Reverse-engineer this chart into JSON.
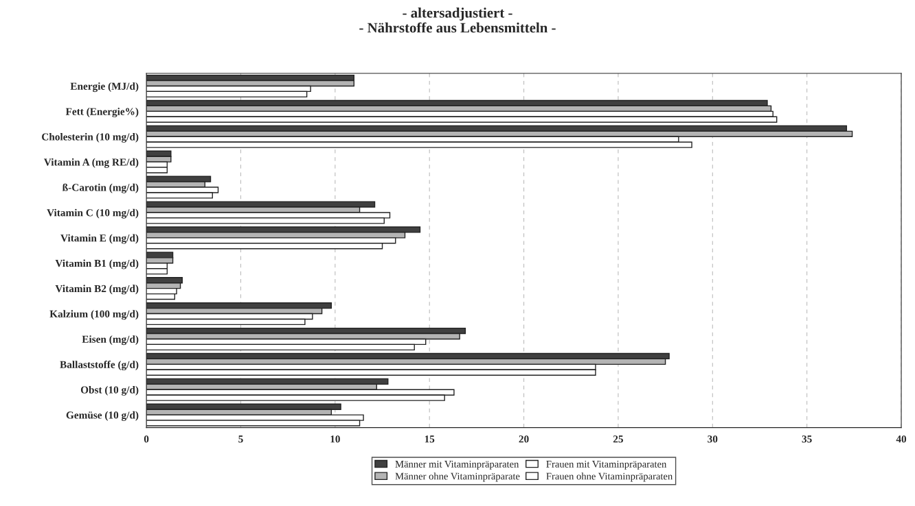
{
  "chart_data": {
    "type": "bar",
    "orientation": "horizontal",
    "title": "- altersadjustiert -\n- Nährstoffe aus Lebensmitteln -",
    "categories": [
      "Energie (MJ/d)",
      "Fett (Energie%)",
      "Cholesterin (10 mg/d)",
      "Vitamin A (mg RE/d)",
      "ß-Carotin (mg/d)",
      "Vitamin C (10 mg/d)",
      "Vitamin E (mg/d)",
      "Vitamin B1 (mg/d)",
      "Vitamin B2 (mg/d)",
      "Kalzium (100 mg/d)",
      "Eisen (mg/d)",
      "Ballaststoffe (g/d)",
      "Obst (10 g/d)",
      "Gemüse (10 g/d)"
    ],
    "series": [
      {
        "name": "Männer mit Vitaminpräparaten",
        "color": "#404040",
        "values": [
          11.0,
          32.9,
          37.1,
          1.3,
          3.4,
          12.1,
          14.5,
          1.4,
          1.9,
          9.8,
          16.9,
          27.7,
          12.8,
          10.3
        ]
      },
      {
        "name": "Männer ohne Vitaminpräparate",
        "color": "#b4b4b4",
        "values": [
          11.0,
          33.1,
          37.4,
          1.3,
          3.1,
          11.3,
          13.7,
          1.4,
          1.8,
          9.3,
          16.6,
          27.5,
          12.2,
          9.8
        ]
      },
      {
        "name": "Frauen mit Vitaminpräparaten",
        "color": "#ffffff",
        "values": [
          8.7,
          33.2,
          28.2,
          1.1,
          3.8,
          12.9,
          13.2,
          1.1,
          1.6,
          8.8,
          14.8,
          23.8,
          16.3,
          11.5
        ]
      },
      {
        "name": "Frauen ohne Vitaminpräparaten",
        "color": "#ffffff",
        "values": [
          8.5,
          33.4,
          28.9,
          1.1,
          3.5,
          12.6,
          12.5,
          1.1,
          1.5,
          8.4,
          14.2,
          23.8,
          15.8,
          11.3
        ]
      }
    ],
    "xlim": [
      0,
      40
    ],
    "xticks": [
      0,
      5,
      10,
      15,
      20,
      25,
      30,
      35,
      40
    ],
    "grid": "x",
    "legend": "bottom"
  }
}
